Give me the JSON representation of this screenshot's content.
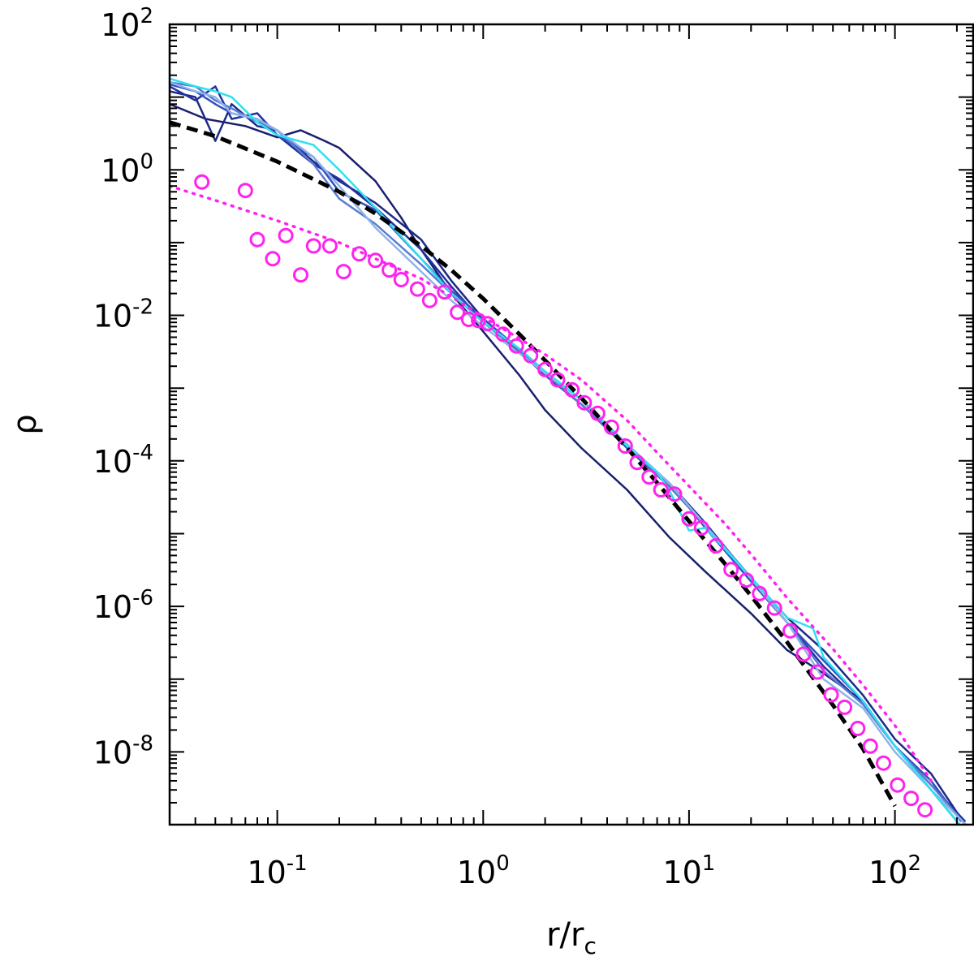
{
  "chart_data": {
    "type": "line",
    "title": "",
    "x_scale": "log",
    "y_scale": "log",
    "xlim": [
      0.03,
      240
    ],
    "ylim": [
      1e-09,
      100
    ],
    "xlabel": {
      "base": "r/r",
      "sub": "c"
    },
    "ylabel": "ρ",
    "x_ticks": [
      {
        "value": 0.1,
        "base": "10",
        "exp": "-1"
      },
      {
        "value": 1,
        "base": "10",
        "exp": "0"
      },
      {
        "value": 10,
        "base": "10",
        "exp": "1"
      },
      {
        "value": 100,
        "base": "10",
        "exp": "2"
      }
    ],
    "y_ticks": [
      {
        "value": 1e-08,
        "base": "10",
        "exp": "-8"
      },
      {
        "value": 1e-06,
        "base": "10",
        "exp": "-6"
      },
      {
        "value": 0.0001,
        "base": "10",
        "exp": "-4"
      },
      {
        "value": 0.01,
        "base": "10",
        "exp": "-2"
      },
      {
        "value": 1,
        "base": "10",
        "exp": "0"
      },
      {
        "value": 100,
        "base": "10",
        "exp": "2"
      }
    ],
    "grid": false,
    "legend": "none",
    "series": [
      {
        "style": "solid",
        "color": "#1a1f6e",
        "width": 2.5,
        "x": [
          0.03,
          0.045,
          0.07,
          0.1,
          0.13,
          0.17,
          0.2,
          0.3,
          0.4,
          0.5,
          0.7,
          1.0,
          1.5,
          2.0,
          3.0,
          5.0,
          8.0,
          12,
          20,
          30,
          45,
          70,
          100,
          150,
          220
        ],
        "y": [
          8,
          5,
          4,
          2.8,
          3.5,
          2.5,
          2.0,
          0.7,
          0.22,
          0.08,
          0.02,
          0.006,
          0.0015,
          0.0005,
          0.00015,
          4e-05,
          9e-06,
          3e-06,
          8e-07,
          2.5e-07,
          1.2e-07,
          5e-08,
          1.2e-08,
          3e-09,
          8e-10
        ]
      },
      {
        "style": "solid",
        "color": "#1c2a85",
        "width": 2.5,
        "x": [
          0.03,
          0.04,
          0.05,
          0.06,
          0.08,
          0.1,
          0.15,
          0.2,
          0.3,
          0.5,
          0.7,
          1.0,
          1.5,
          2.0,
          3.0,
          5.0,
          8.0,
          12,
          20,
          30,
          45,
          70,
          100,
          150,
          210
        ],
        "y": [
          12,
          10,
          2.5,
          8,
          4,
          3.5,
          1.3,
          0.7,
          0.35,
          0.11,
          0.03,
          0.009,
          0.0034,
          0.0016,
          0.0007,
          0.00015,
          4.5e-05,
          1.3e-05,
          2.5e-06,
          7e-07,
          2.5e-07,
          6e-08,
          1.5e-08,
          5e-09,
          1.2e-09
        ]
      },
      {
        "style": "solid",
        "color": "#2233a0",
        "width": 2.5,
        "x": [
          0.03,
          0.04,
          0.05,
          0.06,
          0.08,
          0.1,
          0.15,
          0.2,
          0.3,
          0.5,
          0.7,
          1.0,
          1.5,
          2.0,
          3.0,
          5.0,
          8.0,
          12,
          20,
          30,
          45,
          70,
          100,
          150,
          220
        ],
        "y": [
          14,
          9,
          14,
          5,
          6,
          3,
          1.2,
          0.75,
          0.3,
          0.08,
          0.025,
          0.008,
          0.0032,
          0.0015,
          0.0006,
          0.00016,
          5e-05,
          1.4e-05,
          2.4e-06,
          6e-07,
          1.5e-07,
          4.5e-08,
          1.2e-08,
          3.5e-09,
          1.1e-09
        ]
      },
      {
        "style": "solid",
        "color": "#3050c0",
        "width": 2.5,
        "x": [
          0.03,
          0.04,
          0.05,
          0.06,
          0.08,
          0.1,
          0.15,
          0.2,
          0.3,
          0.5,
          0.7,
          1.0,
          1.5,
          2.0,
          3.0,
          5.0,
          8.0,
          12,
          20,
          30,
          45,
          70,
          100,
          150,
          210
        ],
        "y": [
          15,
          12,
          8,
          6,
          5,
          3,
          1.5,
          0.5,
          0.28,
          0.06,
          0.022,
          0.009,
          0.0034,
          0.0015,
          0.0006,
          0.00015,
          5e-05,
          1.2e-05,
          2.2e-06,
          6e-07,
          1.8e-07,
          5e-08,
          1.2e-08,
          4e-09,
          1.1e-09
        ]
      },
      {
        "style": "solid",
        "color": "#5a7bd0",
        "width": 2.5,
        "x": [
          0.03,
          0.04,
          0.05,
          0.06,
          0.08,
          0.1,
          0.15,
          0.2,
          0.3,
          0.5,
          0.7,
          1.0,
          1.5,
          2.0,
          3.0,
          5.0,
          8.0,
          12,
          20,
          30,
          45,
          70,
          100,
          150,
          220
        ],
        "y": [
          16,
          14,
          9,
          7,
          4.5,
          3.5,
          1.2,
          0.4,
          0.18,
          0.05,
          0.02,
          0.008,
          0.0033,
          0.0016,
          0.0006,
          0.00016,
          4.5e-05,
          1.3e-05,
          2.5e-06,
          6e-07,
          1.3e-07,
          4.5e-08,
          1.2e-08,
          3.5e-09,
          1e-09
        ]
      },
      {
        "style": "solid",
        "color": "#8fb4e8",
        "width": 2.5,
        "x": [
          0.03,
          0.04,
          0.05,
          0.06,
          0.08,
          0.1,
          0.15,
          0.2,
          0.3,
          0.5,
          0.7,
          1.0,
          1.5,
          2.0,
          3.0,
          5.0,
          8.0,
          12,
          20,
          30,
          45,
          70,
          100,
          150,
          230
        ],
        "y": [
          16,
          12,
          10,
          6,
          5,
          3.5,
          1.5,
          0.6,
          0.16,
          0.04,
          0.016,
          0.007,
          0.003,
          0.0016,
          0.0007,
          0.00017,
          5e-05,
          1.3e-05,
          2.4e-06,
          6e-07,
          1e-07,
          4e-08,
          1e-08,
          3e-09,
          9e-10
        ]
      },
      {
        "style": "solid",
        "color": "#2ee0f0",
        "width": 2.5,
        "x": [
          0.03,
          0.04,
          0.05,
          0.06,
          0.08,
          0.1,
          0.15,
          0.2,
          0.3,
          0.5,
          0.7,
          1.0,
          1.5,
          2.0,
          3.0,
          5.0,
          7.0,
          8.0,
          10,
          12,
          20,
          30,
          40,
          45,
          70,
          100,
          150,
          220
        ],
        "y": [
          18,
          14,
          12,
          10,
          4.5,
          3,
          2.2,
          1.0,
          0.3,
          0.06,
          0.02,
          0.008,
          0.0035,
          0.0017,
          0.0007,
          0.00016,
          7e-05,
          4e-05,
          1.1e-05,
          1.2e-05,
          2.5e-06,
          7e-07,
          5e-07,
          2e-07,
          5e-08,
          1.2e-08,
          3e-09,
          8e-10
        ]
      },
      {
        "style": "dashed",
        "color": "#000000",
        "width": 5,
        "x": [
          0.03,
          0.05,
          0.1,
          0.2,
          0.3,
          0.5,
          0.7,
          1.0,
          1.5,
          2.0,
          3.0,
          5.0,
          7.0,
          10,
          15,
          20,
          30,
          50,
          70,
          100
        ],
        "y": [
          4.5,
          2.9,
          1.3,
          0.5,
          0.25,
          0.09,
          0.042,
          0.017,
          0.0055,
          0.0024,
          0.00073,
          0.00015,
          5e-05,
          1.48e-05,
          3.8e-06,
          1.4e-06,
          3.2e-07,
          4.4e-08,
          1.1e-08,
          1.8e-09
        ]
      },
      {
        "style": "dotted",
        "color": "#ff22ee",
        "width": 3.5,
        "x": [
          0.03,
          0.05,
          0.1,
          0.2,
          0.3,
          0.5,
          0.7,
          1.0,
          1.5,
          2.0,
          3.0,
          5.0,
          7.0,
          10,
          15,
          20,
          30,
          50,
          70,
          100,
          150
        ],
        "y": [
          0.6,
          0.38,
          0.2,
          0.1,
          0.06,
          0.032,
          0.018,
          0.0095,
          0.0048,
          0.0029,
          0.0013,
          0.00036,
          0.00013,
          4.5e-05,
          1.35e-05,
          5.2e-06,
          1.3e-06,
          2.6e-07,
          8.3e-08,
          2.3e-08,
          4e-09
        ]
      },
      {
        "style": "markers",
        "marker": "circle-open",
        "color": "#ff22ee",
        "width": 3,
        "x": [
          0.043,
          0.07,
          0.08,
          0.095,
          0.11,
          0.13,
          0.15,
          0.18,
          0.21,
          0.25,
          0.3,
          0.35,
          0.4,
          0.48,
          0.55,
          0.65,
          0.75,
          0.85,
          0.95,
          1.05,
          1.25,
          1.45,
          1.7,
          2.0,
          2.3,
          2.7,
          3.1,
          3.6,
          4.2,
          4.9,
          5.6,
          6.4,
          7.3,
          8.5,
          10,
          11.5,
          13.5,
          16,
          19,
          22,
          26,
          31,
          36,
          42,
          49,
          57,
          66,
          76,
          88,
          103,
          120,
          140
        ],
        "y": [
          0.68,
          0.52,
          0.11,
          0.06,
          0.125,
          0.036,
          0.09,
          0.09,
          0.04,
          0.07,
          0.057,
          0.042,
          0.031,
          0.023,
          0.016,
          0.021,
          0.011,
          0.0088,
          0.0085,
          0.0077,
          0.0055,
          0.0038,
          0.0028,
          0.0018,
          0.0013,
          0.00095,
          0.00063,
          0.00045,
          0.00029,
          0.00016,
          9.5e-05,
          6e-05,
          4e-05,
          3.5e-05,
          1.6e-05,
          1.2e-05,
          6.8e-06,
          3.2e-06,
          2.3e-06,
          1.5e-06,
          9.5e-07,
          4.6e-07,
          2.2e-07,
          1.25e-07,
          6.1e-08,
          4.1e-08,
          2.1e-08,
          1.2e-08,
          7e-09,
          3.5e-09,
          2.3e-09,
          1.6e-09
        ]
      }
    ]
  }
}
